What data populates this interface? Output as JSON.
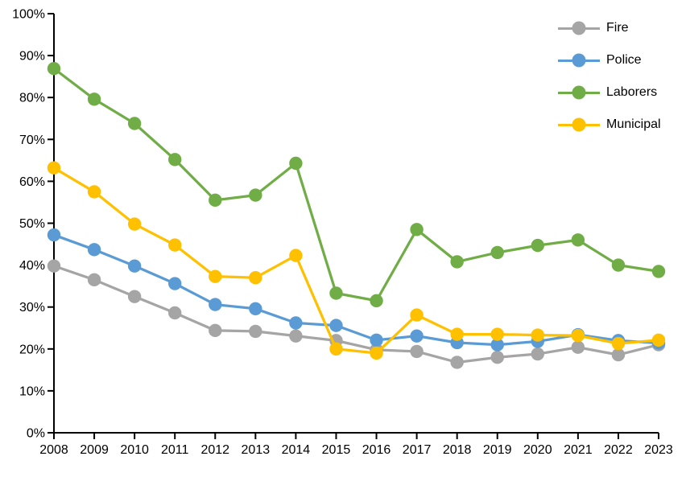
{
  "chart_data": {
    "type": "line",
    "categories": [
      "2008",
      "2009",
      "2010",
      "2011",
      "2012",
      "2013",
      "2014",
      "2015",
      "2016",
      "2017",
      "2018",
      "2019",
      "2020",
      "2021",
      "2022",
      "2023"
    ],
    "series": [
      {
        "name": "Fire",
        "color": "#A5A5A5",
        "values": [
          39.8,
          36.5,
          32.5,
          28.6,
          24.4,
          24.2,
          23.1,
          22.0,
          19.8,
          19.4,
          16.8,
          18.0,
          18.8,
          20.4,
          18.6,
          21.0
        ]
      },
      {
        "name": "Police",
        "color": "#5B9BD5",
        "values": [
          47.2,
          43.7,
          39.8,
          35.6,
          30.6,
          29.6,
          26.2,
          25.6,
          22.1,
          23.1,
          21.5,
          21.0,
          21.8,
          23.4,
          22.0,
          21.4
        ]
      },
      {
        "name": "Laborers",
        "color": "#70AD47",
        "values": [
          86.9,
          79.6,
          73.8,
          65.2,
          55.5,
          56.7,
          64.3,
          33.3,
          31.5,
          48.5,
          40.8,
          43.0,
          44.7,
          46.0,
          40.0,
          38.5
        ]
      },
      {
        "name": "Municipal",
        "color": "#FFC000",
        "values": [
          63.2,
          57.5,
          49.8,
          44.8,
          37.3,
          37.0,
          42.3,
          20.0,
          19.0,
          28.1,
          23.5,
          23.5,
          23.3,
          23.2,
          21.3,
          22.1
        ]
      }
    ],
    "ylim": [
      0,
      100
    ],
    "ytick_step": 10,
    "ytick_labels": [
      "0%",
      "10%",
      "20%",
      "30%",
      "40%",
      "50%",
      "60%",
      "70%",
      "80%",
      "90%",
      "100%"
    ],
    "grid": false,
    "legend_position": "top-right",
    "axis_color": "#000000",
    "marker_style": "circle"
  }
}
